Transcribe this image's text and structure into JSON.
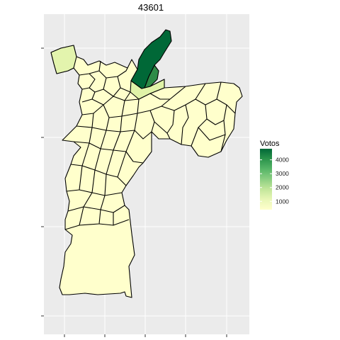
{
  "map": {
    "title": "43601",
    "legend": {
      "title": "Votos",
      "ticks": [
        "1000",
        "2000",
        "3000",
        "4000"
      ],
      "tick_values": [
        1000,
        2000,
        3000,
        4000
      ],
      "range": [
        400,
        4800
      ],
      "colors": [
        "#ffffcc",
        "#d9f0a3",
        "#addd8e",
        "#78c679",
        "#41ab5d",
        "#238443",
        "#006837"
      ]
    },
    "panel_background": "#ebebeb",
    "grid_color": "#ffffff",
    "regions_highlighted": [
      {
        "name": "north-district-dark",
        "votes": 4700
      },
      {
        "name": "north-district-medium",
        "votes": 3700
      },
      {
        "name": "north-district-light",
        "votes": 1600
      },
      {
        "name": "northwest-district",
        "votes": 1300
      }
    ],
    "default_votes": 300
  }
}
